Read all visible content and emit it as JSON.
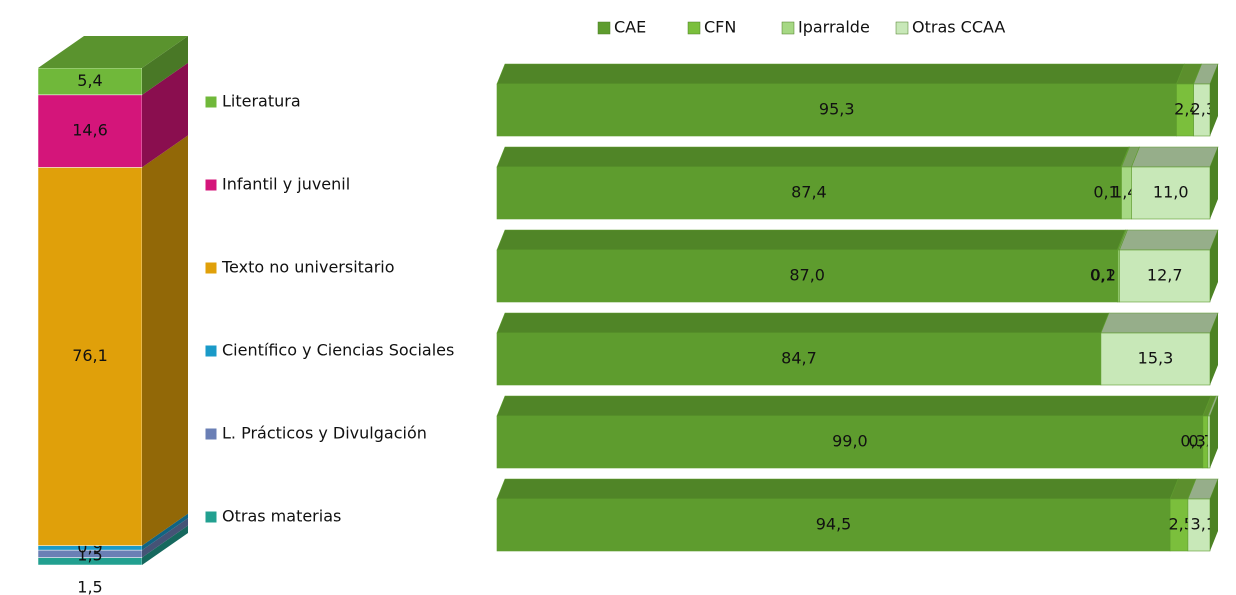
{
  "chart_data": [
    {
      "type": "stacked_column",
      "categories": [
        "Literatura",
        "Infantil y juvenil",
        "Texto no universitario",
        "Científico y Ciencias Sociales",
        "L. Prácticos y Divulgación",
        "Otras materias"
      ],
      "values": [
        5.4,
        14.6,
        76.1,
        0.9,
        1.5,
        1.5
      ],
      "value_labels": [
        "5,4",
        "14,6",
        "76,1",
        "0,9",
        "1,5",
        "1,5"
      ],
      "colors": [
        "#70b83a",
        "#d4157a",
        "#e0a00a",
        "#1a9ac8",
        "#6a7fb5",
        "#22a090"
      ]
    },
    {
      "type": "stacked_bar",
      "series": [
        {
          "name": "CAE",
          "color": "#5e9c2e",
          "values": [
            95.3,
            87.4,
            87.0,
            84.7,
            99.0,
            94.5
          ],
          "value_labels": [
            "95,3",
            "87,4",
            "87,0",
            "84,7",
            "99,0",
            "94,5"
          ]
        },
        {
          "name": "CFN",
          "color": "#7bbf3c",
          "values": [
            2.4,
            0.1,
            0.1,
            null,
            0.7,
            2.5
          ],
          "value_labels": [
            "2,4",
            "0,1",
            "0,1",
            null,
            "0,7",
            "2,5"
          ]
        },
        {
          "name": "Iparralde",
          "color": "#a6d884",
          "values": [
            null,
            1.4,
            0.2,
            null,
            null,
            null
          ],
          "value_labels": [
            null,
            "1,4",
            "0,2",
            null,
            null,
            null
          ]
        },
        {
          "name": "Otras CCAA",
          "color": "#c8e8b8",
          "values": [
            2.3,
            11.0,
            12.7,
            15.3,
            0.3,
            3.1
          ],
          "value_labels": [
            "2,3",
            "11,0",
            "12,7",
            "15,3",
            "0,3",
            "3,1"
          ]
        }
      ]
    }
  ]
}
